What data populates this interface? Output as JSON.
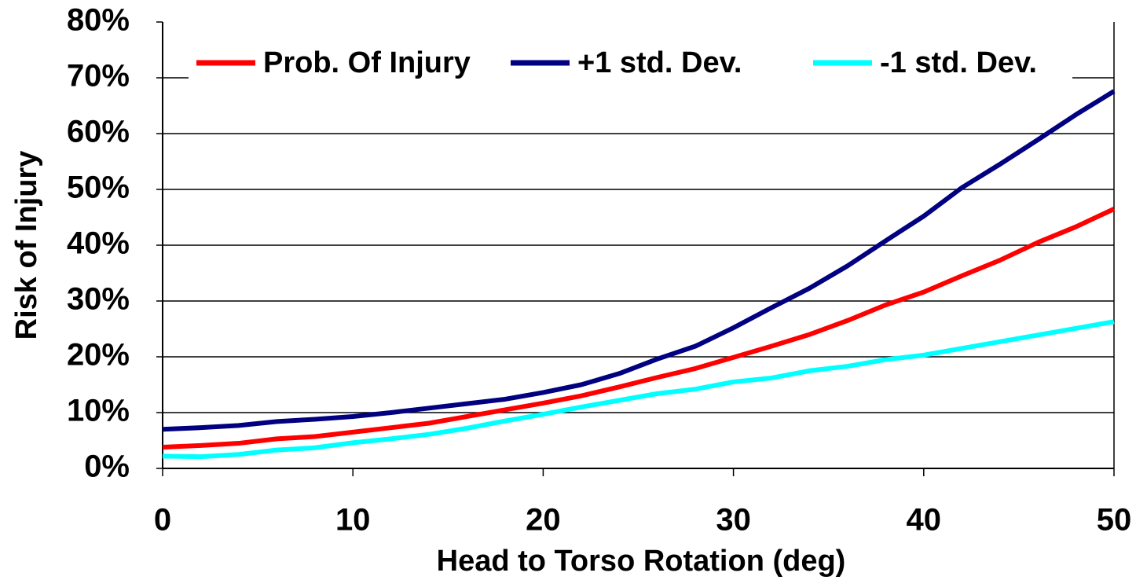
{
  "chart_data": {
    "type": "line",
    "xlabel": "Head to Torso Rotation (deg)",
    "ylabel": "Risk of Injury",
    "x": [
      0,
      2,
      4,
      6,
      8,
      10,
      12,
      14,
      16,
      18,
      20,
      22,
      24,
      26,
      28,
      30,
      32,
      34,
      36,
      38,
      40,
      42,
      44,
      46,
      48,
      50
    ],
    "series": [
      {
        "name": "Prob. Of Injury",
        "color": "#ff0000",
        "values": [
          3.8,
          4.1,
          4.5,
          5.3,
          5.7,
          6.5,
          7.3,
          8.1,
          9.3,
          10.5,
          11.7,
          13.0,
          14.6,
          16.3,
          17.9,
          19.9,
          21.9,
          24.0,
          26.5,
          29.3,
          31.6,
          34.5,
          37.3,
          40.5,
          43.3,
          46.5
        ]
      },
      {
        "name": "+1 std. Dev.",
        "color": "#000080",
        "values": [
          7.0,
          7.3,
          7.7,
          8.4,
          8.8,
          9.3,
          10.0,
          10.8,
          11.6,
          12.4,
          13.6,
          15.0,
          17.0,
          19.6,
          21.9,
          25.2,
          28.8,
          32.3,
          36.3,
          40.8,
          45.2,
          50.3,
          54.5,
          58.9,
          63.4,
          67.6
        ]
      },
      {
        "name": "-1 std. Dev.",
        "color": "#00ffff",
        "values": [
          2.2,
          2.1,
          2.5,
          3.3,
          3.7,
          4.6,
          5.3,
          6.1,
          7.2,
          8.5,
          9.7,
          11.0,
          12.2,
          13.4,
          14.2,
          15.5,
          16.2,
          17.5,
          18.3,
          19.5,
          20.3,
          21.5,
          22.7,
          23.9,
          25.1,
          26.3
        ]
      }
    ],
    "xlim": [
      0,
      50
    ],
    "xticks": [
      0,
      10,
      20,
      30,
      40,
      50
    ],
    "ylim": [
      0,
      80
    ],
    "yticks": [
      {
        "value": 0,
        "label": "0%"
      },
      {
        "value": 10,
        "label": "10%"
      },
      {
        "value": 20,
        "label": "20%"
      },
      {
        "value": 30,
        "label": "30%"
      },
      {
        "value": 40,
        "label": "40%"
      },
      {
        "value": 50,
        "label": "50%"
      },
      {
        "value": 60,
        "label": "60%"
      },
      {
        "value": 70,
        "label": "70%"
      },
      {
        "value": 80,
        "label": "80%"
      }
    ],
    "grid": true,
    "legend": "top"
  }
}
